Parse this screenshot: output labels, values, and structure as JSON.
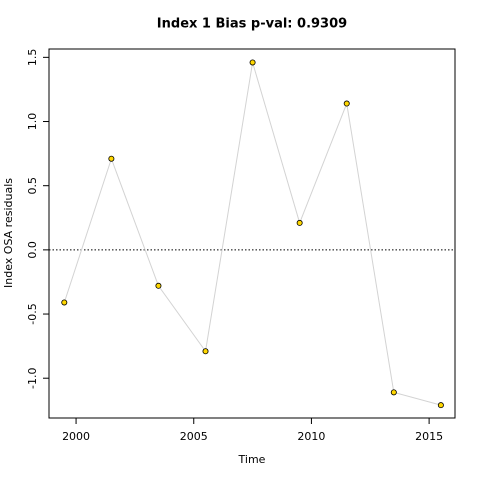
{
  "chart_data": {
    "type": "line",
    "title": "Index 1 Bias p-val: 0.9309",
    "title_color": "#228b22",
    "x_label": "Time",
    "y_label": "Index OSA residuals",
    "x": [
      1999.5,
      2001.5,
      2003.5,
      2005.5,
      2007.5,
      2009.5,
      2011.5,
      2013.5,
      2015.5
    ],
    "series": [
      {
        "name": "Index 1",
        "color": "#d3d3d3",
        "marker_color": "#ffd700",
        "values": [
          -0.41,
          0.71,
          -0.28,
          -0.79,
          1.46,
          0.21,
          1.14,
          -1.11,
          -1.21
        ]
      }
    ],
    "xlim": [
      1998.85,
      2016.1
    ],
    "xticks": [
      2000,
      2005,
      2010,
      2015
    ],
    "ylim": [
      -1.31,
      1.565
    ],
    "yticks": [
      {
        "value": -1,
        "label": "-1.0"
      },
      -0.5,
      {
        "value": 0,
        "label": "0.0"
      },
      0.5,
      {
        "value": 1,
        "label": "1.0"
      },
      1.5
    ],
    "reference_line": 0
  }
}
